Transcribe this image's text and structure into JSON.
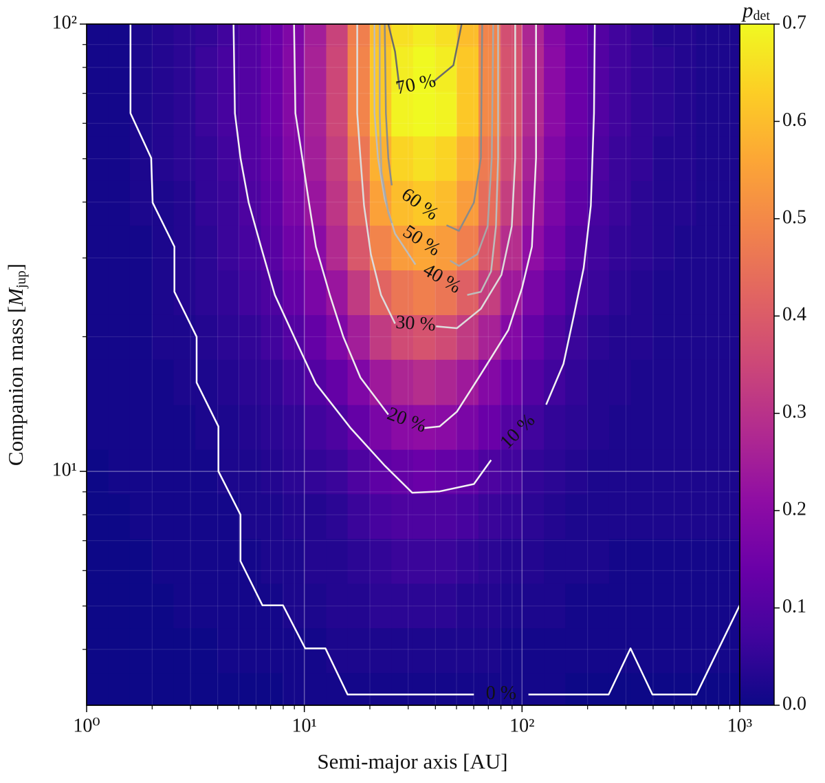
{
  "chart_data": {
    "type": "heatmap",
    "xlabel": "Semi-major axis [AU]",
    "ylabel": [
      "Companion mass [",
      "M",
      "jup",
      "]"
    ],
    "colorbar_label": [
      "p",
      "det"
    ],
    "xscale": "log",
    "yscale": "log",
    "grid": true,
    "xlim": [
      1,
      1000
    ],
    "ylim": [
      3,
      100
    ],
    "clim": [
      0,
      0.7
    ],
    "xticks": [
      {
        "value": 1,
        "label": "10⁰"
      },
      {
        "value": 10,
        "label": "10¹"
      },
      {
        "value": 100,
        "label": "10²"
      },
      {
        "value": 1000,
        "label": "10³"
      }
    ],
    "yticks": [
      {
        "value": 10,
        "label": "10¹"
      },
      {
        "value": 100,
        "label": "10²"
      }
    ],
    "xminorticks": [
      2,
      3,
      4,
      5,
      6,
      7,
      8,
      9,
      20,
      30,
      40,
      50,
      60,
      70,
      80,
      90,
      200,
      300,
      400,
      500,
      600,
      700,
      800,
      900
    ],
    "yminorticks": [
      4,
      5,
      6,
      7,
      8,
      9,
      20,
      30,
      40,
      50,
      60,
      70,
      80,
      90
    ],
    "cticks": [
      {
        "value": 0,
        "label": "0.0"
      },
      0.1,
      0.2,
      0.3,
      0.4,
      0.5,
      0.6,
      0.7
    ],
    "x_edges": [
      1,
      1.26,
      1.58,
      2,
      2.51,
      3.16,
      3.98,
      5.01,
      6.31,
      7.94,
      10,
      12.6,
      15.8,
      20,
      25.1,
      31.6,
      39.8,
      50.1,
      63.1,
      79.4,
      100,
      126,
      158,
      200,
      251,
      316,
      398,
      501,
      631,
      794,
      1000
    ],
    "y_edges": [
      3,
      3.55,
      4.47,
      5.62,
      7.08,
      8.91,
      11.2,
      14.1,
      17.8,
      22.4,
      28.2,
      35.5,
      44.7,
      56.2,
      70.8,
      89.1,
      100
    ],
    "z": [
      [
        0,
        0,
        0,
        0,
        0,
        0,
        0,
        0,
        0,
        0.01,
        0.01,
        0.01,
        0.01,
        0.01,
        0.01,
        0.01,
        0.01,
        0.01,
        0.01,
        0.01,
        0.01,
        0.01,
        0,
        0,
        0,
        0,
        0,
        0,
        0,
        0
      ],
      [
        0,
        0,
        0,
        0,
        0,
        0,
        0.01,
        0.01,
        0.01,
        0.01,
        0.01,
        0.02,
        0.02,
        0.02,
        0.02,
        0.02,
        0.02,
        0.02,
        0.02,
        0.01,
        0.01,
        0.01,
        0.01,
        0.01,
        0.01,
        0.01,
        0.01,
        0.01,
        0.01,
        0.01
      ],
      [
        0,
        0,
        0,
        0,
        0.01,
        0.01,
        0.01,
        0.01,
        0.01,
        0.02,
        0.02,
        0.03,
        0.03,
        0.04,
        0.04,
        0.04,
        0.04,
        0.03,
        0.03,
        0.02,
        0.02,
        0.02,
        0.01,
        0.01,
        0.01,
        0.01,
        0.01,
        0.01,
        0.01,
        0.01
      ],
      [
        0,
        0,
        0,
        0.01,
        0.01,
        0.01,
        0.01,
        0.01,
        0.02,
        0.02,
        0.03,
        0.03,
        0.04,
        0.05,
        0.06,
        0.06,
        0.06,
        0.05,
        0.04,
        0.03,
        0.03,
        0.02,
        0.02,
        0.02,
        0.01,
        0.01,
        0.01,
        0.01,
        0.01,
        0.01
      ],
      [
        0,
        0,
        0.01,
        0.01,
        0.01,
        0.01,
        0.01,
        0.02,
        0.02,
        0.03,
        0.03,
        0.04,
        0.06,
        0.08,
        0.09,
        0.09,
        0.09,
        0.08,
        0.06,
        0.05,
        0.04,
        0.03,
        0.02,
        0.02,
        0.02,
        0.02,
        0.02,
        0.02,
        0.02,
        0.02
      ],
      [
        0,
        0.01,
        0.01,
        0.01,
        0.01,
        0.01,
        0.02,
        0.02,
        0.03,
        0.04,
        0.05,
        0.06,
        0.09,
        0.12,
        0.13,
        0.14,
        0.13,
        0.12,
        0.09,
        0.07,
        0.05,
        0.04,
        0.03,
        0.02,
        0.02,
        0.02,
        0.02,
        0.02,
        0.02,
        0.02
      ],
      [
        0.01,
        0.01,
        0.01,
        0.01,
        0.01,
        0.02,
        0.02,
        0.03,
        0.04,
        0.05,
        0.07,
        0.09,
        0.13,
        0.17,
        0.2,
        0.21,
        0.2,
        0.17,
        0.14,
        0.1,
        0.07,
        0.05,
        0.04,
        0.03,
        0.02,
        0.02,
        0.02,
        0.02,
        0.02,
        0.02
      ],
      [
        0.01,
        0.01,
        0.01,
        0.01,
        0.02,
        0.02,
        0.03,
        0.04,
        0.05,
        0.07,
        0.1,
        0.13,
        0.18,
        0.24,
        0.27,
        0.29,
        0.27,
        0.24,
        0.19,
        0.14,
        0.1,
        0.07,
        0.05,
        0.03,
        0.03,
        0.02,
        0.02,
        0.02,
        0.02,
        0.02
      ],
      [
        0.01,
        0.01,
        0.01,
        0.02,
        0.02,
        0.03,
        0.04,
        0.05,
        0.07,
        0.1,
        0.13,
        0.18,
        0.25,
        0.32,
        0.36,
        0.38,
        0.36,
        0.32,
        0.26,
        0.19,
        0.13,
        0.09,
        0.06,
        0.04,
        0.03,
        0.03,
        0.02,
        0.02,
        0.02,
        0.02
      ],
      [
        0.01,
        0.01,
        0.01,
        0.02,
        0.03,
        0.04,
        0.05,
        0.07,
        0.09,
        0.13,
        0.17,
        0.23,
        0.32,
        0.42,
        0.46,
        0.48,
        0.46,
        0.41,
        0.33,
        0.24,
        0.17,
        0.12,
        0.08,
        0.06,
        0.04,
        0.03,
        0.02,
        0.02,
        0.02,
        0.02
      ],
      [
        0.01,
        0.01,
        0.01,
        0.02,
        0.03,
        0.04,
        0.06,
        0.08,
        0.11,
        0.15,
        0.2,
        0.28,
        0.39,
        0.49,
        0.54,
        0.56,
        0.54,
        0.48,
        0.39,
        0.29,
        0.21,
        0.15,
        0.1,
        0.07,
        0.05,
        0.04,
        0.03,
        0.02,
        0.02,
        0.02
      ],
      [
        0.01,
        0.01,
        0.02,
        0.02,
        0.03,
        0.05,
        0.06,
        0.09,
        0.12,
        0.17,
        0.23,
        0.31,
        0.43,
        0.55,
        0.6,
        0.62,
        0.6,
        0.54,
        0.44,
        0.33,
        0.24,
        0.17,
        0.12,
        0.08,
        0.06,
        0.04,
        0.03,
        0.03,
        0.02,
        0.02
      ],
      [
        0.01,
        0.01,
        0.02,
        0.03,
        0.04,
        0.05,
        0.07,
        0.1,
        0.13,
        0.18,
        0.25,
        0.33,
        0.46,
        0.58,
        0.64,
        0.66,
        0.64,
        0.58,
        0.47,
        0.36,
        0.26,
        0.18,
        0.13,
        0.09,
        0.06,
        0.05,
        0.03,
        0.03,
        0.02,
        0.02
      ],
      [
        0.01,
        0.01,
        0.02,
        0.03,
        0.04,
        0.06,
        0.08,
        0.1,
        0.14,
        0.19,
        0.26,
        0.35,
        0.49,
        0.62,
        0.69,
        0.71,
        0.69,
        0.62,
        0.5,
        0.38,
        0.28,
        0.2,
        0.14,
        0.1,
        0.07,
        0.05,
        0.04,
        0.03,
        0.02,
        0.02
      ],
      [
        0.01,
        0.01,
        0.02,
        0.03,
        0.04,
        0.06,
        0.08,
        0.1,
        0.14,
        0.19,
        0.26,
        0.35,
        0.49,
        0.62,
        0.68,
        0.7,
        0.68,
        0.62,
        0.5,
        0.38,
        0.28,
        0.2,
        0.14,
        0.1,
        0.07,
        0.05,
        0.04,
        0.03,
        0.02,
        0.02
      ],
      [
        0.01,
        0.01,
        0.02,
        0.03,
        0.04,
        0.05,
        0.07,
        0.1,
        0.14,
        0.18,
        0.25,
        0.34,
        0.48,
        0.6,
        0.66,
        0.68,
        0.66,
        0.6,
        0.49,
        0.37,
        0.27,
        0.19,
        0.14,
        0.1,
        0.07,
        0.05,
        0.03,
        0.03,
        0.02,
        0.02
      ]
    ],
    "contours": [
      {
        "label": "0 %",
        "color": "#ffffff",
        "x": [
          1.59,
          1.59,
          1.98,
          2.01,
          2.53,
          2.53,
          3.2,
          3.2,
          4.03,
          4.03,
          5.09,
          5.09,
          6.42,
          7.98,
          10.1,
          12.5,
          15.8,
          60.1,
          null,
          107,
          250,
          315,
          397,
          632,
          1000
        ],
        "y": [
          100,
          63.2,
          50.2,
          39.9,
          31.8,
          25.2,
          20,
          15.8,
          12.6,
          10,
          8,
          6.3,
          5.02,
          5.02,
          4.02,
          4.02,
          3.17,
          3.17,
          null,
          3.17,
          3.17,
          4.02,
          3.17,
          3.17,
          5.02
        ]
      },
      {
        "label": "10 %",
        "color": "#f4f4f4",
        "x": [
          4.73,
          4.8,
          5.09,
          5.55,
          6.32,
          7.32,
          9.1,
          11.3,
          16.3,
          23.4,
          31.3,
          41.8,
          60.1,
          72.1,
          null,
          129,
          155,
          173,
          192,
          207,
          214,
          216
        ],
        "y": [
          100,
          63.2,
          50.2,
          39.9,
          31.8,
          24.8,
          19.7,
          15.7,
          12.5,
          10.3,
          8.96,
          9.02,
          9.37,
          10.6,
          null,
          14.1,
          17.4,
          22.3,
          28.5,
          39.3,
          63.2,
          100
        ]
      },
      {
        "label": "20 %",
        "color": "#eeeeee",
        "x": [
          8.97,
          9.1,
          9.79,
          10.5,
          11.3,
          13.1,
          15.1,
          18.1,
          24.3,
          null,
          35.6,
          41.8,
          50.2,
          64.7,
          86.5,
          100,
          111,
          116,
          116
        ],
        "y": [
          100,
          63.2,
          50.2,
          39.9,
          31.8,
          24.8,
          20,
          16.2,
          13.4,
          null,
          12.5,
          12.6,
          13.6,
          16.5,
          20.7,
          25.7,
          31.8,
          50.2,
          100
        ]
      },
      {
        "label": "30 %",
        "color": "#dddddd",
        "x": [
          17.5,
          17.5,
          18.1,
          18.8,
          20.2,
          22.5,
          26.1,
          null,
          40.3,
          50.2,
          64.7,
          80.4,
          89.7,
          93,
          93
        ],
        "y": [
          100,
          63.2,
          50.2,
          39.3,
          30.6,
          24.8,
          21.4,
          null,
          21.1,
          20.9,
          23.1,
          27.5,
          35.3,
          50.2,
          100
        ]
      },
      {
        "label": "40 %",
        "color": "#bdbdbd",
        "x": [
          21,
          21,
          21.8,
          23.4,
          26.1,
          32.4,
          null,
          56,
          64.7,
          72.1,
          75.9,
          77.6,
          77.6
        ],
        "y": [
          100,
          63.2,
          50.2,
          40.6,
          34,
          29,
          null,
          24.8,
          25.2,
          28,
          35.3,
          50.2,
          100
        ]
      },
      {
        "label": "50 %",
        "color": "#a8a8a8",
        "x": [
          22.2,
          22.2,
          22.6,
          24.3,
          25.2,
          null,
          46.7,
          51.3,
          62.4,
          69.5,
          72.6,
          73.7
        ],
        "y": [
          100,
          63.2,
          46.8,
          37.9,
          35.9,
          null,
          29.6,
          28.8,
          30.6,
          35.3,
          50.2,
          100
        ]
      },
      {
        "label": "60 %",
        "color": "#8a8a8a",
        "x": [
          23.4,
          23.7,
          24.3,
          25.2,
          null,
          45,
          51.3,
          60.1,
          64.7,
          65.6
        ],
        "y": [
          100,
          63.2,
          50.2,
          43.6,
          null,
          35.5,
          34.5,
          39.9,
          50.2,
          100
        ]
      },
      {
        "label": "70 %",
        "color": "#6a6a6a",
        "x": [
          24.3,
          26.1,
          27.4,
          null,
          38.9,
          48.4,
          52.8
        ],
        "y": [
          100,
          86.8,
          71.5,
          null,
          74.1,
          80.9,
          100
        ]
      }
    ]
  }
}
